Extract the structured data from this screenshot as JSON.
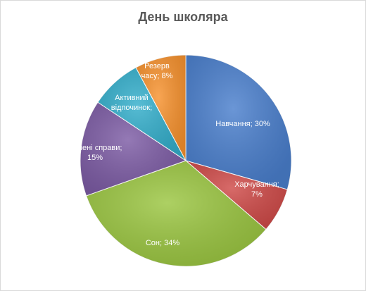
{
  "chart_data": {
    "type": "pie",
    "title": "День школяра",
    "slices": [
      {
        "label": "Навчання",
        "value": 30,
        "color": "#4a7fcd",
        "text_lines": [
          "Навчання; 30%"
        ],
        "text_color": "#ffffff"
      },
      {
        "label": "Харчування",
        "value": 7,
        "color": "#cf4a48",
        "text_lines": [
          "Харчування;",
          "7%"
        ],
        "text_color": "#ffffff"
      },
      {
        "label": "Сон",
        "value": 34,
        "color": "#9bc641",
        "text_lines": [
          "Сон; 34%"
        ],
        "text_color": "#ffffff"
      },
      {
        "label": "Улюблені справи",
        "value": 15,
        "color": "#7d5ca5",
        "text_lines": [
          "юблені справи;",
          "15%"
        ],
        "text_color": "#ffffff"
      },
      {
        "label": "Активний відпочинок",
        "value": 8,
        "color": "#33aecb",
        "text_lines": [
          "Активний",
          "відпочинок;"
        ],
        "text_color": "#ffffff"
      },
      {
        "label": "Резерв часу",
        "value": 8,
        "color": "#f7922e",
        "text_lines": [
          "Резерв",
          "часу; 8%"
        ],
        "text_color": "#ffffff"
      }
    ]
  }
}
